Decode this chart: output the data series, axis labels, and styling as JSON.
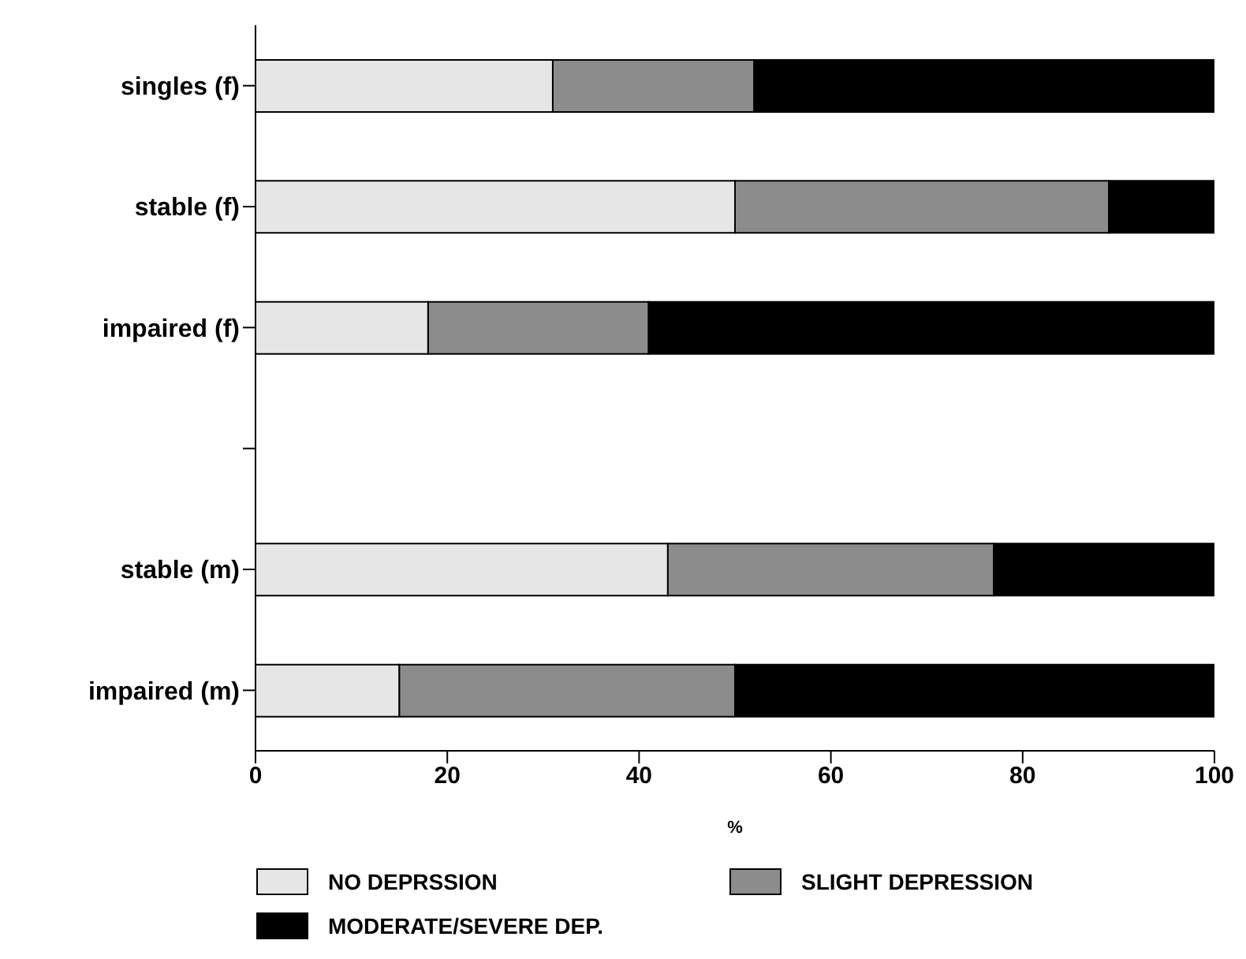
{
  "chart_data": {
    "type": "bar",
    "orientation": "horizontal",
    "stacked": true,
    "categories": [
      "singles (f)",
      "stable (f)",
      "impaired (f)",
      null,
      "stable (m)",
      "impaired (m)"
    ],
    "series": [
      {
        "name": "NO DEPRSSION",
        "color": "#e6e6e6",
        "values": [
          31,
          50,
          18,
          null,
          43,
          15
        ]
      },
      {
        "name": "SLIGHT DEPRESSION",
        "color": "#8c8c8c",
        "values": [
          21,
          39,
          23,
          null,
          34,
          35
        ]
      },
      {
        "name": "MODERATE/SEVERE DEP.",
        "color": "#000000",
        "values": [
          48,
          11,
          59,
          null,
          23,
          50
        ]
      }
    ],
    "xlabel": "%",
    "xlim": [
      0,
      100
    ],
    "xticks": [
      0,
      20,
      40,
      60,
      80,
      100
    ],
    "grid": false,
    "legend": "bottom"
  }
}
